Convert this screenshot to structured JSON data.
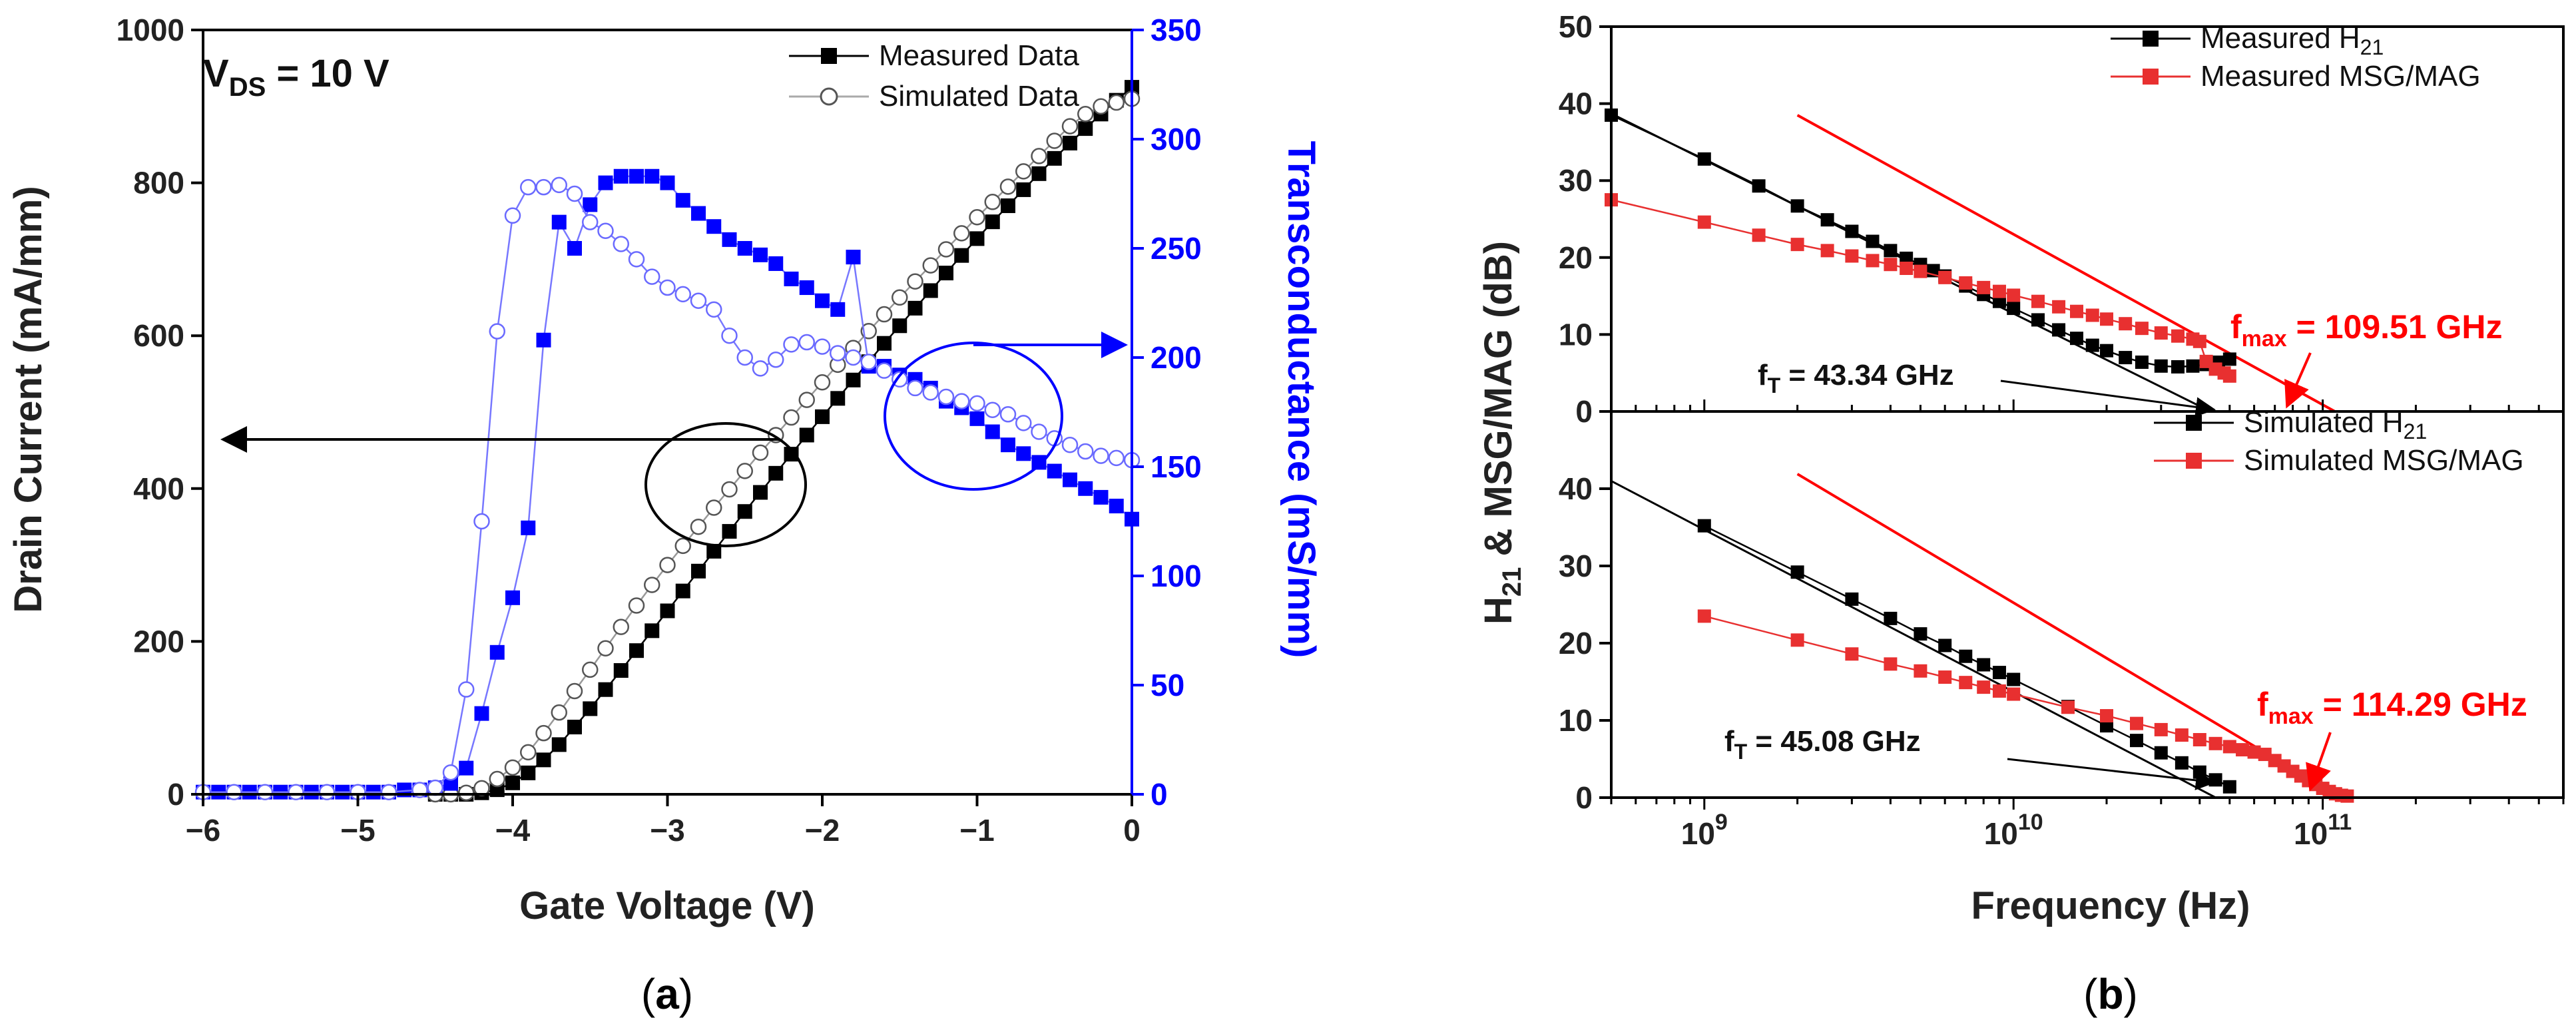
{
  "chart_data": [
    {
      "type": "scatter",
      "panel_label": {
        "open": "(",
        "letter": "a",
        "close": ")"
      },
      "xlabel": "Gate Voltage (V)",
      "ylabel": "Drain Current (mA/mm)",
      "y2label": "Transconductance (mS/mm)",
      "xlim": [
        -6,
        0
      ],
      "ylim": [
        0,
        1000
      ],
      "y2lim": [
        0,
        350
      ],
      "xticks": [
        -6,
        -5,
        -4,
        -3,
        -2,
        -1,
        0
      ],
      "xtick_labels": [
        "−6",
        "−5",
        "−4",
        "−3",
        "−2",
        "−1",
        "0"
      ],
      "yticks": [
        0,
        200,
        400,
        600,
        800,
        1000
      ],
      "y2ticks": [
        0,
        50,
        100,
        150,
        200,
        250,
        300,
        350
      ],
      "condition": {
        "main": "V",
        "sub": "DS",
        "rest": " = 10 V"
      },
      "legend": {
        "placement": "top-right",
        "entries": [
          "Measured Data",
          "Simulated Data"
        ]
      },
      "colors": {
        "drain": "#000000",
        "gm": "#0000ff",
        "gm_line": "#7777ff"
      },
      "series": [
        {
          "name": "Measured Data",
          "axis": "left",
          "kind": "drain",
          "marker": "filled-square",
          "x": [
            -4.5,
            -4.4,
            -4.3,
            -4.2,
            -4.1,
            -4.0,
            -3.9,
            -3.8,
            -3.7,
            -3.6,
            -3.5,
            -3.4,
            -3.3,
            -3.2,
            -3.1,
            -3.0,
            -2.9,
            -2.8,
            -2.7,
            -2.6,
            -2.5,
            -2.4,
            -2.3,
            -2.2,
            -2.1,
            -2.0,
            -1.9,
            -1.8,
            -1.7,
            -1.6,
            -1.5,
            -1.4,
            -1.3,
            -1.2,
            -1.1,
            -1.0,
            -0.9,
            -0.8,
            -0.7,
            -0.6,
            -0.5,
            -0.4,
            -0.3,
            -0.2,
            -0.1,
            0.0
          ],
          "y": [
            0,
            0,
            0,
            2,
            6,
            15,
            28,
            45,
            65,
            88,
            112,
            137,
            162,
            188,
            214,
            240,
            266,
            292,
            318,
            344,
            370,
            395,
            420,
            445,
            470,
            494,
            518,
            542,
            566,
            590,
            613,
            636,
            659,
            682,
            705,
            727,
            749,
            770,
            791,
            812,
            832,
            852,
            871,
            890,
            908,
            925
          ]
        },
        {
          "name": "Simulated Data",
          "axis": "left",
          "kind": "drain",
          "marker": "open-circle",
          "x": [
            -4.5,
            -4.4,
            -4.3,
            -4.2,
            -4.1,
            -4.0,
            -3.9,
            -3.8,
            -3.7,
            -3.6,
            -3.5,
            -3.4,
            -3.3,
            -3.2,
            -3.1,
            -3.0,
            -2.9,
            -2.8,
            -2.7,
            -2.6,
            -2.5,
            -2.4,
            -2.3,
            -2.2,
            -2.1,
            -2.0,
            -1.9,
            -1.8,
            -1.7,
            -1.6,
            -1.5,
            -1.4,
            -1.3,
            -1.2,
            -1.1,
            -1.0,
            -0.9,
            -0.8,
            -0.7,
            -0.6,
            -0.5,
            -0.4,
            -0.3,
            -0.2,
            -0.1,
            0.0
          ],
          "y": [
            0,
            0,
            2,
            8,
            20,
            35,
            55,
            80,
            107,
            135,
            163,
            191,
            219,
            247,
            274,
            300,
            325,
            350,
            375,
            399,
            423,
            447,
            470,
            493,
            516,
            539,
            562,
            584,
            606,
            628,
            650,
            671,
            692,
            713,
            734,
            755,
            775,
            795,
            815,
            835,
            855,
            874,
            890,
            900,
            905,
            910
          ]
        },
        {
          "name": "Measured gm",
          "axis": "right",
          "kind": "gm",
          "marker": "filled-square",
          "x": [
            -6.0,
            -5.9,
            -5.8,
            -5.7,
            -5.6,
            -5.5,
            -5.4,
            -5.3,
            -5.2,
            -5.1,
            -5.0,
            -4.9,
            -4.8,
            -4.7,
            -4.6,
            -4.5,
            -4.4,
            -4.3,
            -4.2,
            -4.1,
            -4.0,
            -3.9,
            -3.8,
            -3.7,
            -3.6,
            -3.5,
            -3.4,
            -3.3,
            -3.2,
            -3.1,
            -3.0,
            -2.9,
            -2.8,
            -2.7,
            -2.6,
            -2.5,
            -2.4,
            -2.3,
            -2.2,
            -2.1,
            -2.0,
            -1.9,
            -1.8,
            -1.7,
            -1.6,
            -1.5,
            -1.4,
            -1.3,
            -1.2,
            -1.1,
            -1.0,
            -0.9,
            -0.8,
            -0.7,
            -0.6,
            -0.5,
            -0.4,
            -0.3,
            -0.2,
            -0.1,
            0.0
          ],
          "y": [
            1,
            1,
            1,
            1,
            1,
            1,
            1,
            1,
            1,
            1,
            1,
            1,
            1,
            2,
            2,
            3,
            5,
            12,
            37,
            65,
            90,
            122,
            208,
            262,
            250,
            270,
            280,
            283,
            283,
            283,
            280,
            272,
            266,
            260,
            254,
            250,
            247,
            243,
            236,
            232,
            226,
            222,
            246,
            196,
            196,
            192,
            190,
            186,
            180,
            177,
            172,
            166,
            160,
            156,
            152,
            148,
            144,
            140,
            136,
            132,
            126
          ]
        },
        {
          "name": "Simulated gm",
          "axis": "right",
          "kind": "gm",
          "marker": "open-circle",
          "x": [
            -6.0,
            -5.8,
            -5.6,
            -5.4,
            -5.2,
            -5.0,
            -4.8,
            -4.6,
            -4.5,
            -4.4,
            -4.3,
            -4.2,
            -4.1,
            -4.0,
            -3.9,
            -3.8,
            -3.7,
            -3.6,
            -3.5,
            -3.4,
            -3.3,
            -3.2,
            -3.1,
            -3.0,
            -2.9,
            -2.8,
            -2.7,
            -2.6,
            -2.5,
            -2.4,
            -2.3,
            -2.2,
            -2.1,
            -2.0,
            -1.9,
            -1.8,
            -1.7,
            -1.6,
            -1.5,
            -1.4,
            -1.3,
            -1.2,
            -1.1,
            -1.0,
            -0.9,
            -0.8,
            -0.7,
            -0.6,
            -0.5,
            -0.4,
            -0.3,
            -0.2,
            -0.1,
            0.0
          ],
          "y": [
            1,
            1,
            1,
            1,
            1,
            1,
            1,
            2,
            3,
            10,
            48,
            125,
            212,
            265,
            278,
            278,
            279,
            275,
            262,
            258,
            252,
            245,
            237,
            232,
            229,
            226,
            222,
            210,
            200,
            195,
            199,
            206,
            207,
            205,
            202,
            200,
            198,
            194,
            190,
            186,
            184,
            182,
            180,
            179,
            176,
            174,
            170,
            166,
            163,
            160,
            157,
            155,
            154,
            153
          ]
        }
      ],
      "annotations": {
        "left_arrow": "Drain Current axis",
        "right_arrow": "Transconductance axis"
      }
    },
    {
      "type": "scatter",
      "panel_label": {
        "open": "(",
        "letter": "b",
        "close": ")"
      },
      "xlabel": "Frequency (Hz)",
      "ylabel": {
        "main": "H",
        "sub": "21",
        "rest": " & MSG/MAG (dB)"
      },
      "xscale": "log",
      "xlim": [
        500000000,
        600000000000
      ],
      "xticks": [
        1000000000,
        10000000000,
        100000000000
      ],
      "xtick_labels": [
        {
          "base": "10",
          "exp": "9"
        },
        {
          "base": "10",
          "exp": "10"
        },
        {
          "base": "10",
          "exp": "11"
        }
      ],
      "colors": {
        "h21": "#000000",
        "msg": "#e83030",
        "fit": "#ff0000"
      },
      "panels": [
        {
          "name": "measured",
          "ylim": [
            0,
            50
          ],
          "yticks": [
            0,
            10,
            20,
            30,
            40,
            50
          ],
          "legend": {
            "placement": "top-center",
            "entries": [
              {
                "main": "Measured H",
                "sub": "21"
              },
              {
                "main": "Measured MSG/MAG",
                "sub": ""
              }
            ]
          },
          "series": [
            {
              "name": "Measured H21",
              "kind": "h21",
              "x": [
                500000000,
                1000000000,
                1500000000,
                2000000000,
                2500000000,
                3000000000,
                3500000000,
                4000000000,
                4500000000,
                5000000000,
                5500000000,
                6000000000,
                7000000000,
                8000000000,
                9000000000,
                10000000000,
                12000000000,
                14000000000,
                16000000000,
                18000000000,
                20000000000,
                23000000000,
                26000000000,
                30000000000,
                34000000000,
                38000000000,
                42000000000,
                46000000000,
                50000000000
              ],
              "y": [
                38.5,
                32.8,
                29.3,
                26.7,
                24.9,
                23.4,
                22.1,
                20.9,
                19.9,
                19.1,
                18.3,
                17.6,
                16.3,
                15.2,
                14.3,
                13.4,
                11.9,
                10.6,
                9.5,
                8.6,
                7.9,
                7.0,
                6.4,
                5.9,
                5.8,
                5.9,
                6.1,
                6.4,
                6.8
              ]
            },
            {
              "name": "Measured MSG/MAG",
              "kind": "msg",
              "x": [
                500000000,
                1000000000,
                1500000000,
                2000000000,
                2500000000,
                3000000000,
                3500000000,
                4000000000,
                4500000000,
                5000000000,
                6000000000,
                7000000000,
                8000000000,
                9000000000,
                10000000000,
                12000000000,
                14000000000,
                16000000000,
                18000000000,
                20000000000,
                23000000000,
                26000000000,
                30000000000,
                34000000000,
                38000000000,
                40000000000,
                42000000000,
                45000000000,
                48000000000,
                50000000000
              ],
              "y": [
                27.5,
                24.6,
                22.9,
                21.7,
                20.9,
                20.2,
                19.6,
                19.1,
                18.6,
                18.2,
                17.4,
                16.7,
                16.1,
                15.6,
                15.1,
                14.3,
                13.6,
                13.0,
                12.5,
                12.0,
                11.4,
                10.8,
                10.2,
                9.8,
                9.4,
                9.1,
                6.5,
                5.5,
                5.0,
                4.6
              ]
            }
          ],
          "fits": [
            {
              "kind": "h21",
              "x": [
                500000000,
                43340000000
              ],
              "y": [
                38.7,
                0
              ]
            },
            {
              "kind": "msg",
              "x": [
                2000000000,
                109510000000
              ],
              "y": [
                38.5,
                0
              ]
            }
          ],
          "annotations": [
            {
              "text": {
                "main": "f",
                "sub": "T",
                "rest": " = 43.34 GHz"
              },
              "color": "#000000",
              "x": 43340000000
            },
            {
              "text": {
                "main": "f",
                "sub": "max",
                "rest": " = 109.51 GHz"
              },
              "color": "#ff0000",
              "x": 109510000000
            }
          ]
        },
        {
          "name": "simulated",
          "ylim": [
            0,
            50
          ],
          "yticks": [
            0,
            10,
            20,
            30,
            40
          ],
          "legend": {
            "placement": "top-right",
            "entries": [
              {
                "main": "Simulated H",
                "sub": "21"
              },
              {
                "main": "Simulated MSG/MAG",
                "sub": ""
              }
            ]
          },
          "series": [
            {
              "name": "Simulated H21",
              "kind": "h21",
              "x": [
                1000000000,
                2000000000,
                3000000000,
                4000000000,
                5000000000,
                6000000000,
                7000000000,
                8000000000,
                9000000000,
                10000000000,
                15000000000,
                20000000000,
                25000000000,
                30000000000,
                35000000000,
                40000000000,
                45000000000,
                50000000000
              ],
              "y": [
                35.2,
                29.2,
                25.7,
                23.2,
                21.2,
                19.7,
                18.3,
                17.2,
                16.2,
                15.3,
                11.8,
                9.3,
                7.4,
                5.8,
                4.5,
                3.3,
                2.3,
                1.4
              ]
            },
            {
              "name": "Simulated MSG/MAG",
              "kind": "msg",
              "x": [
                1000000000,
                2000000000,
                3000000000,
                4000000000,
                5000000000,
                6000000000,
                7000000000,
                8000000000,
                9000000000,
                10000000000,
                15000000000,
                20000000000,
                25000000000,
                30000000000,
                35000000000,
                40000000000,
                45000000000,
                50000000000,
                55000000000,
                60000000000,
                65000000000,
                70000000000,
                75000000000,
                80000000000,
                85000000000,
                90000000000,
                95000000000,
                100000000000,
                105000000000,
                110000000000,
                115000000000,
                120000000000
              ],
              "y": [
                23.5,
                20.4,
                18.6,
                17.3,
                16.4,
                15.6,
                14.9,
                14.3,
                13.8,
                13.4,
                11.7,
                10.6,
                9.6,
                8.8,
                8.1,
                7.5,
                7.0,
                6.6,
                6.2,
                5.9,
                5.6,
                4.8,
                4.1,
                3.4,
                2.8,
                2.2,
                1.7,
                1.2,
                0.8,
                0.5,
                0.3,
                0.2
              ]
            }
          ],
          "fits": [
            {
              "kind": "h21",
              "x": [
                500000000,
                45080000000
              ],
              "y": [
                41.0,
                0
              ]
            },
            {
              "kind": "msg",
              "x": [
                2000000000,
                114290000000
              ],
              "y": [
                41.9,
                0
              ]
            }
          ],
          "annotations": [
            {
              "text": {
                "main": "f",
                "sub": "T",
                "rest": " = 45.08 GHz"
              },
              "color": "#000000",
              "x": 45080000000
            },
            {
              "text": {
                "main": "f",
                "sub": "max",
                "rest": " = 114.29 GHz"
              },
              "color": "#ff0000",
              "x": 114290000000
            }
          ]
        }
      ]
    }
  ]
}
